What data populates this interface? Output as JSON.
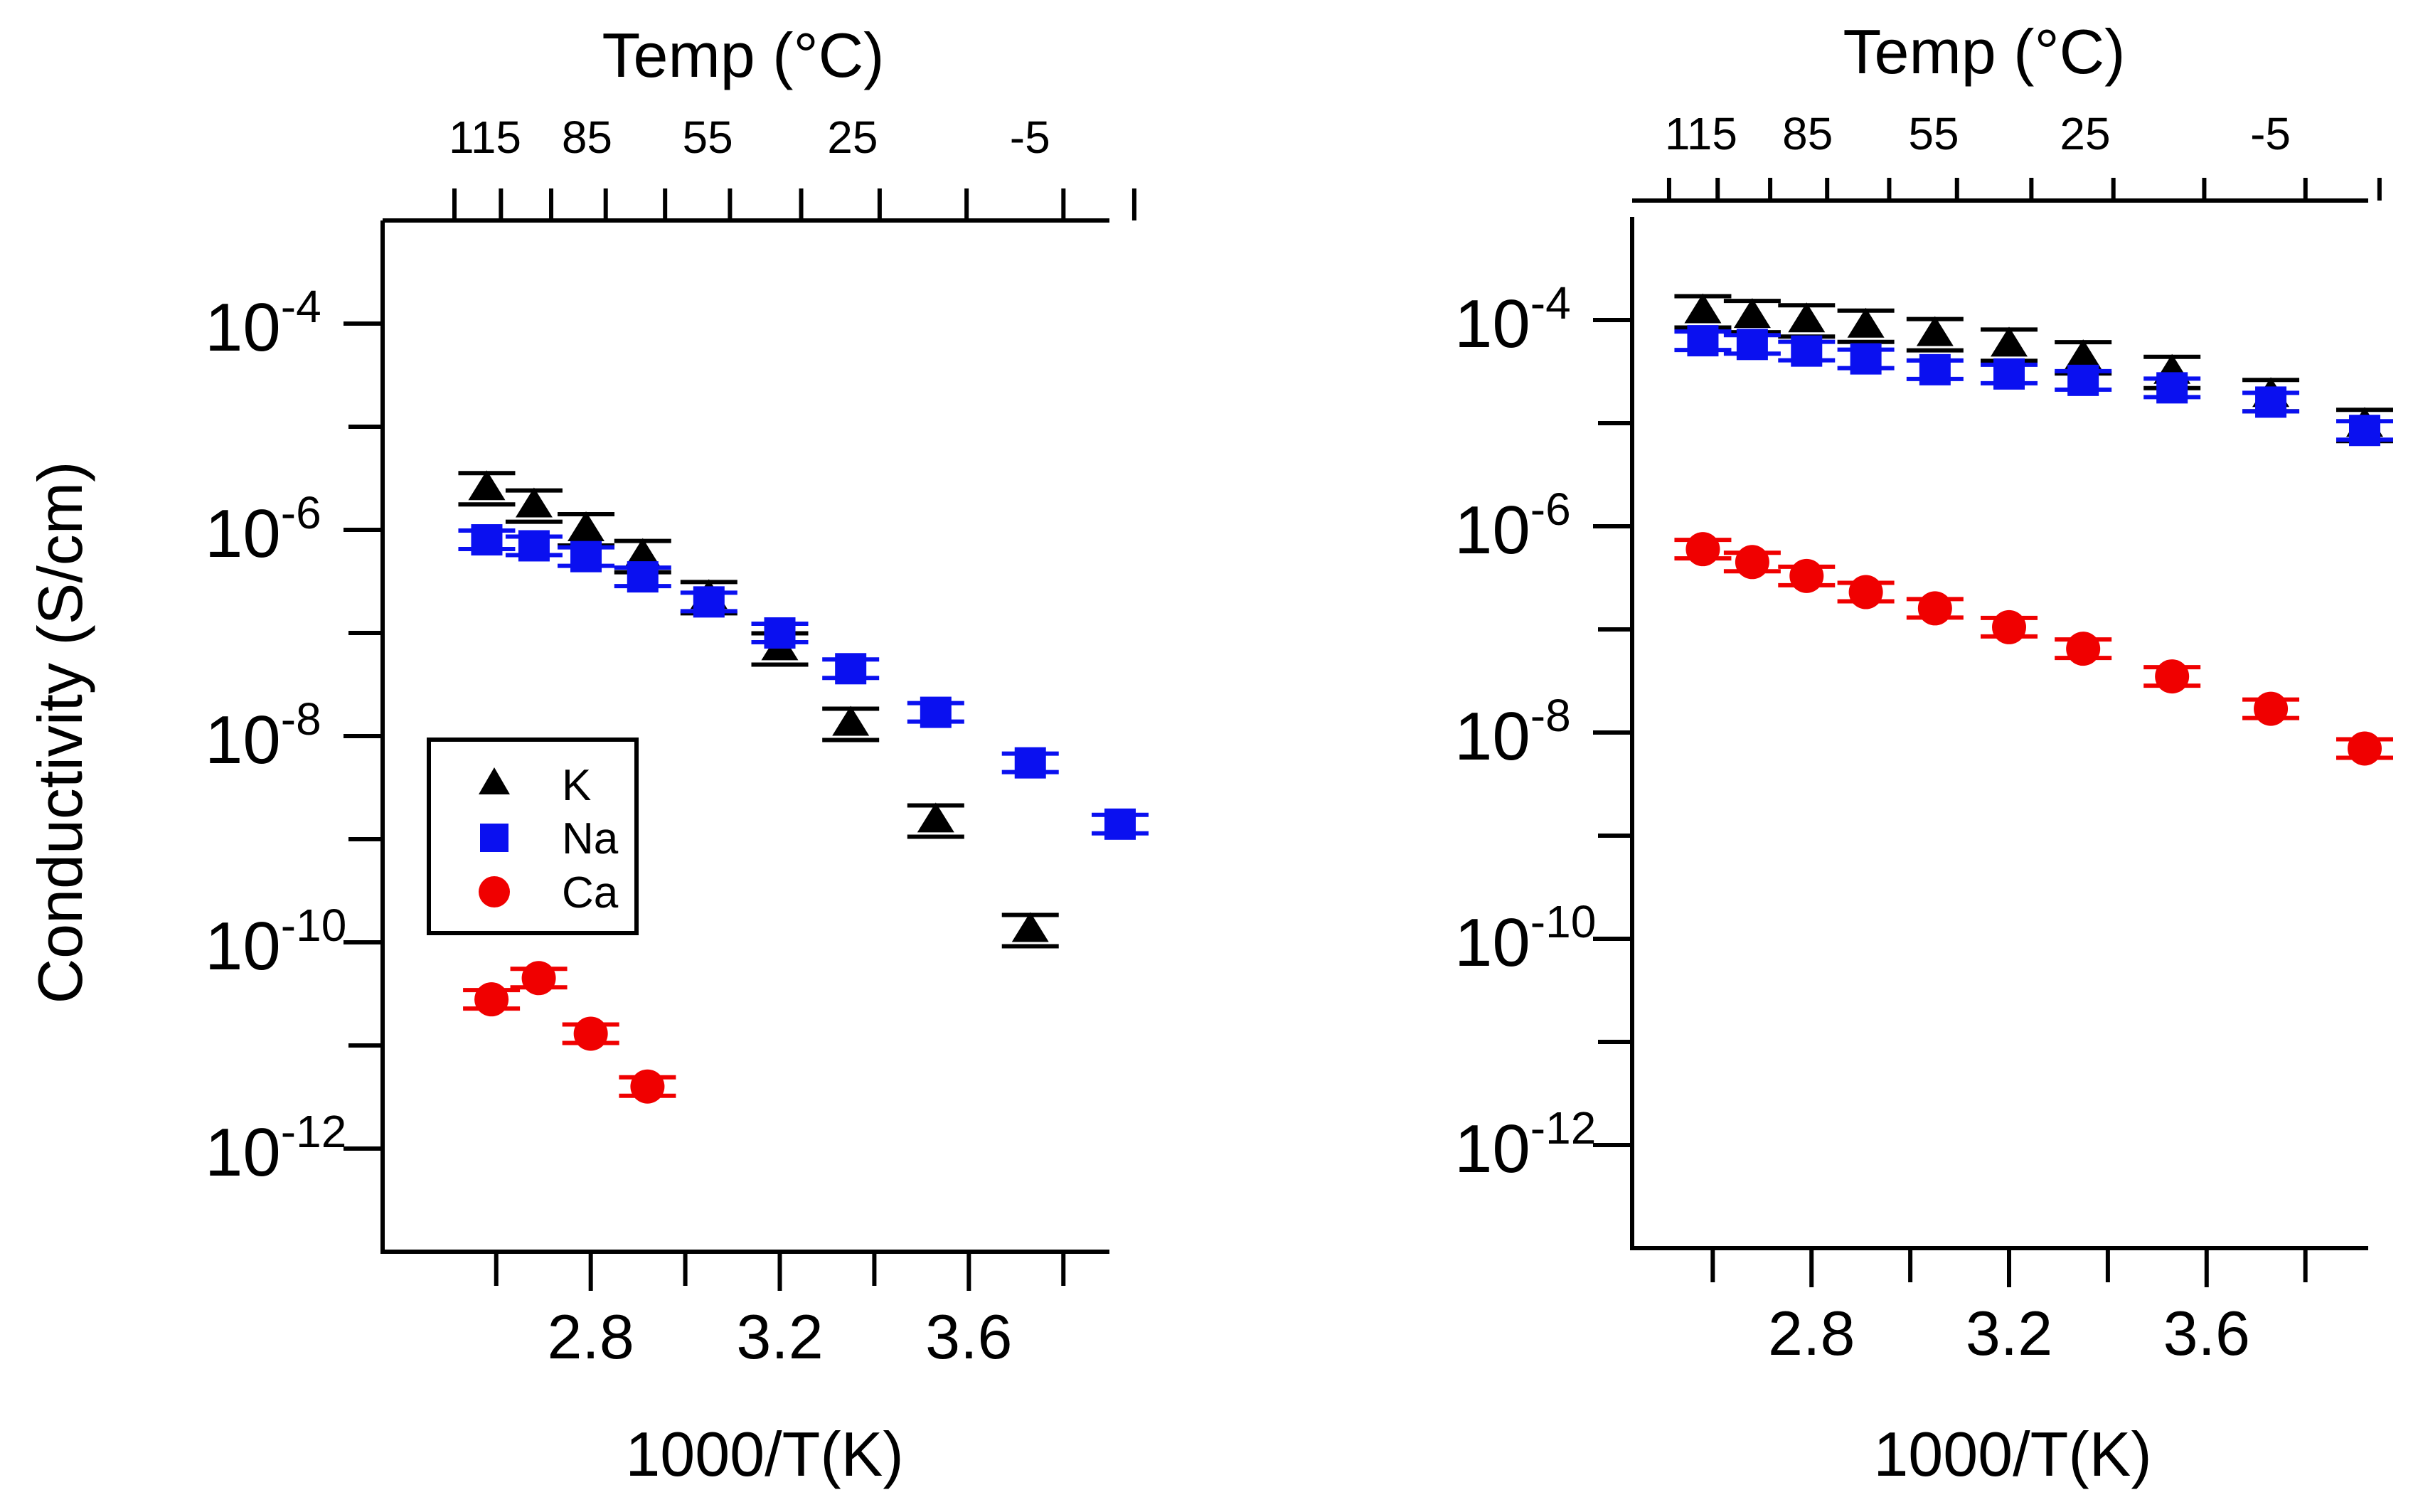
{
  "figure": {
    "top_axis_label": "Temp (°C)",
    "bottom_axis_label": "1000/T(K)",
    "y_axis_label": "Conductivity (S/cm)"
  },
  "chart_data": [
    {
      "type": "scatter",
      "panel": "left",
      "xlabel": "1000/T(K)",
      "ylabel": "Conductivity (S/cm)",
      "x2label": "Temp (°C)",
      "xlim": [
        2.4,
        4.0
      ],
      "ylim": [
        1e-13,
        0.001
      ],
      "yscale": "log",
      "xticks": [
        2.8,
        3.2,
        3.6
      ],
      "yticks": [
        1e-12,
        1e-10,
        1e-08,
        1e-06,
        0.0001
      ],
      "ytick_labels": [
        {
          "base": "10",
          "exp": "-12"
        },
        {
          "base": "10",
          "exp": "-10"
        },
        {
          "base": "10",
          "exp": "-8"
        },
        {
          "base": "10",
          "exp": "-6"
        },
        {
          "base": "10",
          "exp": "-4"
        }
      ],
      "top_ticks_celsius": [
        115,
        85,
        55,
        25,
        -5
      ],
      "top_tick_labels": [
        "115",
        "85",
        "55",
        "25",
        "-5"
      ],
      "top_axis_max_x": 3.95,
      "legend": {
        "position": "left-center",
        "entries": [
          "K",
          "Na",
          "Ca"
        ]
      },
      "series": [
        {
          "name": "K",
          "color": "#000000",
          "marker": "triangle",
          "x": [
            2.58,
            2.68,
            2.79,
            2.91,
            3.05,
            3.2,
            3.35,
            3.53,
            3.73
          ],
          "y": [
            2.5e-06,
            1.7e-06,
            1e-06,
            5.5e-07,
            2.2e-07,
            7e-08,
            1.3e-08,
            1.5e-09,
            1.3e-10
          ]
        },
        {
          "name": "Na",
          "color": "#0a10f0",
          "marker": "square",
          "x": [
            2.58,
            2.68,
            2.79,
            2.91,
            3.05,
            3.2,
            3.35,
            3.53,
            3.73,
            3.92
          ],
          "y": [
            8e-07,
            7e-07,
            5.5e-07,
            3.5e-07,
            2e-07,
            1e-07,
            4.5e-08,
            1.7e-08,
            5.5e-09,
            1.4e-09
          ]
        },
        {
          "name": "Ca",
          "color": "#f00000",
          "marker": "circle",
          "x": [
            2.59,
            2.69,
            2.8,
            2.92
          ],
          "y": [
            2.8e-11,
            4.5e-11,
            1.3e-11,
            4e-12
          ]
        }
      ]
    },
    {
      "type": "scatter",
      "panel": "right",
      "xlabel": "1000/T(K)",
      "ylabel": "",
      "x2label": "Temp (°C)",
      "xlim": [
        2.4,
        4.0
      ],
      "ylim": [
        1e-13,
        0.001
      ],
      "yscale": "log",
      "xticks": [
        2.8,
        3.2,
        3.6
      ],
      "yticks": [
        1e-12,
        1e-10,
        1e-08,
        1e-06,
        0.0001
      ],
      "ytick_labels": [
        {
          "base": "10",
          "exp": "-12"
        },
        {
          "base": "10",
          "exp": "-10"
        },
        {
          "base": "10",
          "exp": "-8"
        },
        {
          "base": "10",
          "exp": "-6"
        },
        {
          "base": "10",
          "exp": "-4"
        }
      ],
      "top_ticks_celsius": [
        115,
        85,
        55,
        25,
        -5
      ],
      "top_tick_labels": [
        "115",
        "85",
        "55",
        "25",
        "-5"
      ],
      "top_axis_max_x": 3.95,
      "series": [
        {
          "name": "K",
          "color": "#000000",
          "marker": "triangle",
          "x": [
            2.58,
            2.68,
            2.79,
            2.91,
            3.05,
            3.2,
            3.35,
            3.53,
            3.73,
            3.92
          ],
          "y": [
            0.00012,
            0.000108,
            9.8e-05,
            8.7e-05,
            7.2e-05,
            5.7e-05,
            4.3e-05,
            3.1e-05,
            1.85e-05,
            9.5e-06
          ]
        },
        {
          "name": "Na",
          "color": "#0a10f0",
          "marker": "square",
          "x": [
            2.58,
            2.68,
            2.79,
            2.91,
            3.05,
            3.2,
            3.35,
            3.53,
            3.73,
            3.92
          ],
          "y": [
            6.3e-05,
            5.8e-05,
            5e-05,
            4.2e-05,
            3.3e-05,
            3e-05,
            2.6e-05,
            2.2e-05,
            1.6e-05,
            8.5e-06
          ]
        },
        {
          "name": "Ca",
          "color": "#f00000",
          "marker": "circle",
          "x": [
            2.58,
            2.68,
            2.79,
            2.91,
            3.05,
            3.2,
            3.35,
            3.53,
            3.73,
            3.92
          ],
          "y": [
            6e-07,
            4.5e-07,
            3.3e-07,
            2.3e-07,
            1.6e-07,
            1.05e-07,
            6.5e-08,
            3.5e-08,
            1.7e-08,
            7e-09
          ]
        }
      ]
    }
  ]
}
